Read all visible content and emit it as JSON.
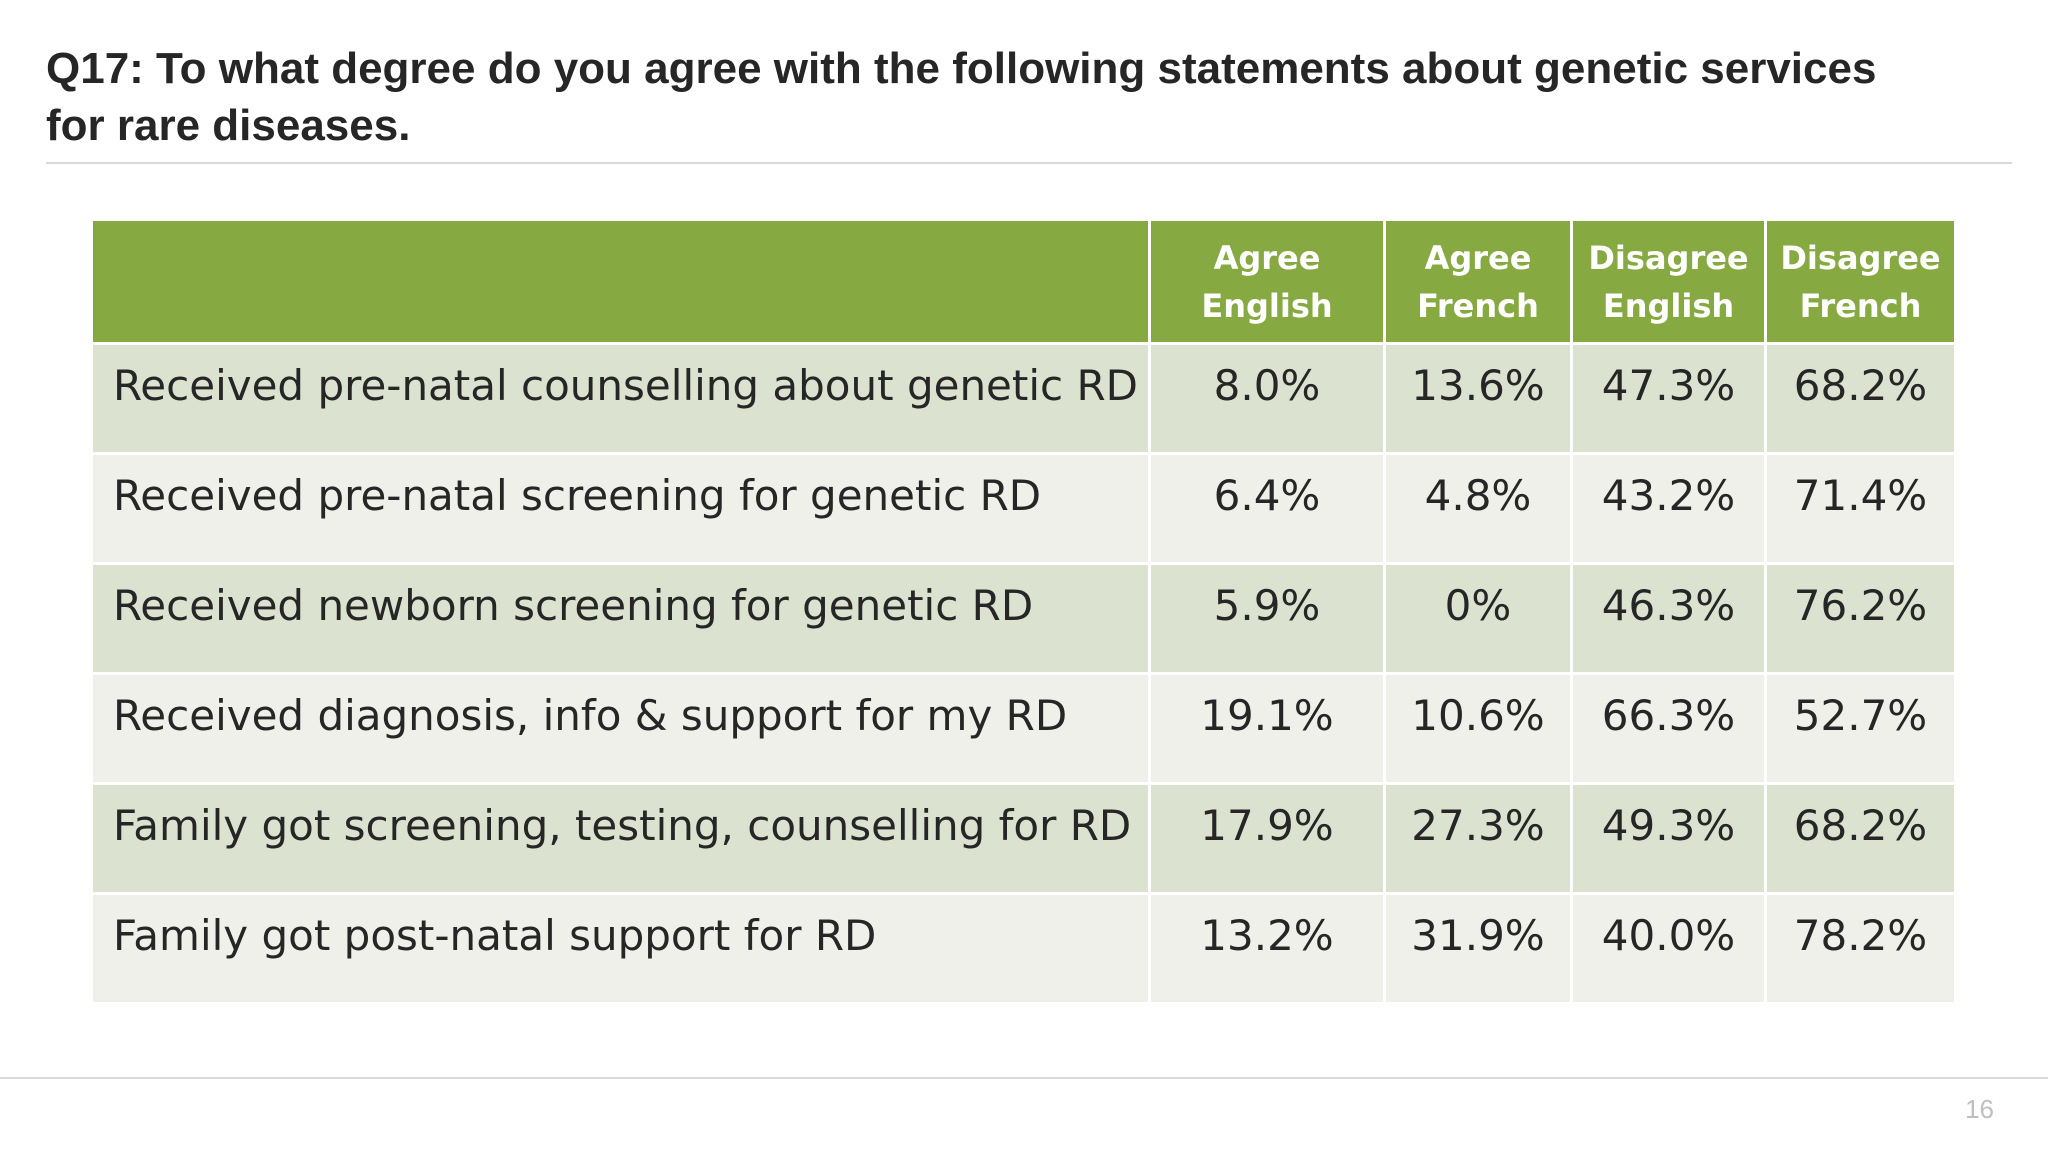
{
  "slide": {
    "title": "Q17: To what degree do you agree with the following statements about genetic services for rare diseases.",
    "page_number": "16"
  },
  "table": {
    "columns": [
      {
        "line1": "Agree",
        "line2": "English"
      },
      {
        "line1": "Agree",
        "line2": "French"
      },
      {
        "line1": "Disagree",
        "line2": "English"
      },
      {
        "line1": "Disagree",
        "line2": "French"
      }
    ],
    "rows": [
      {
        "label": "Received pre-natal counselling about genetic RD",
        "values": [
          "8.0%",
          "13.6%",
          "47.3%",
          "68.2%"
        ]
      },
      {
        "label": "Received pre-natal screening for genetic RD",
        "values": [
          "6.4%",
          "4.8%",
          "43.2%",
          "71.4%"
        ]
      },
      {
        "label": "Received newborn screening for genetic RD",
        "values": [
          "5.9%",
          "0%",
          "46.3%",
          "76.2%"
        ]
      },
      {
        "label": "Received diagnosis, info & support for my RD",
        "values": [
          "19.1%",
          "10.6%",
          "66.3%",
          "52.7%"
        ]
      },
      {
        "label": "Family got screening, testing, counselling for RD",
        "values": [
          "17.9%",
          "27.3%",
          "49.3%",
          "68.2%"
        ]
      },
      {
        "label": "Family got post-natal support for RD",
        "values": [
          "13.2%",
          "31.9%",
          "40.0%",
          "78.2%"
        ]
      }
    ]
  },
  "colors": {
    "header_green": "#86a942",
    "row_dark": "#dce2d0",
    "row_light": "#eff0ea"
  }
}
